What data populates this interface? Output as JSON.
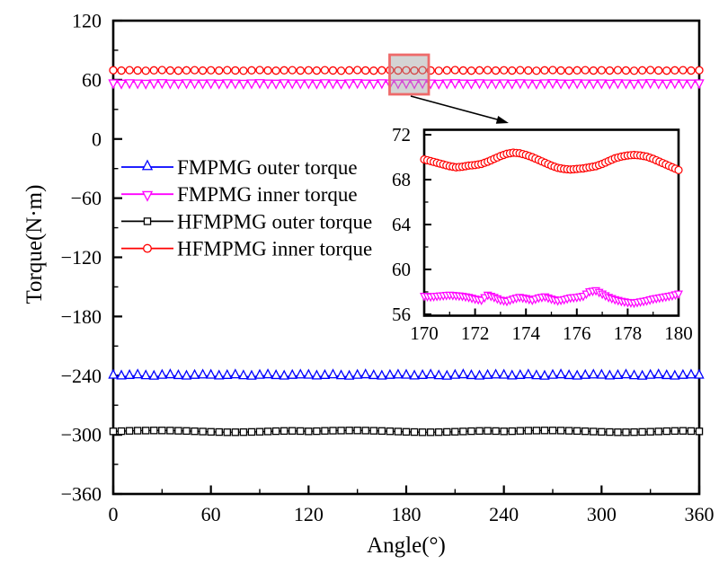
{
  "figure": {
    "background": "#ffffff",
    "frame_color": "#000000"
  },
  "chart_data": {
    "type": "line",
    "title": "",
    "xlabel": "Angle(°)",
    "ylabel": "Torque(N·m)",
    "x_range": [
      0,
      360
    ],
    "y_range": [
      -360,
      120
    ],
    "x_ticks": [
      0,
      60,
      120,
      180,
      240,
      300,
      360
    ],
    "x_minor_ticks": [
      30,
      90,
      150,
      210,
      270,
      330
    ],
    "y_ticks": [
      120,
      60,
      0,
      -60,
      -120,
      -180,
      -240,
      -300,
      -360
    ],
    "y_minor_ticks": [
      90,
      30,
      -30,
      -90,
      -150,
      -210,
      -270,
      -330
    ],
    "grid": false,
    "legend_position": "upper-left-inside",
    "x": [
      0,
      5,
      10,
      15,
      20,
      25,
      30,
      35,
      40,
      45,
      50,
      55,
      60,
      65,
      70,
      75,
      80,
      85,
      90,
      95,
      100,
      105,
      110,
      115,
      120,
      125,
      130,
      135,
      140,
      145,
      150,
      155,
      160,
      165,
      170,
      175,
      180,
      185,
      190,
      195,
      200,
      205,
      210,
      215,
      220,
      225,
      230,
      235,
      240,
      245,
      250,
      255,
      260,
      265,
      270,
      275,
      280,
      285,
      290,
      295,
      300,
      305,
      310,
      315,
      320,
      325,
      330,
      335,
      340,
      345,
      350,
      355,
      360
    ],
    "series": [
      {
        "name": "FMPMG outer torque",
        "color": "#0000ff",
        "marker": "triangle-up",
        "mean": -240.5,
        "values": [
          -240.2,
          -241.0,
          -240.5,
          -239.9,
          -240.8,
          -241.2,
          -240.3,
          -239.8,
          -240.6,
          -241.1,
          -240.4,
          -240.0,
          -240.2,
          -241.0,
          -240.5,
          -239.9,
          -240.8,
          -241.2,
          -240.3,
          -239.8,
          -240.6,
          -241.1,
          -240.4,
          -240.0,
          -240.2,
          -241.0,
          -240.5,
          -239.9,
          -240.8,
          -241.2,
          -240.3,
          -239.8,
          -240.6,
          -241.1,
          -240.4,
          -240.0,
          -240.2,
          -241.0,
          -240.5,
          -239.9,
          -240.8,
          -241.2,
          -240.3,
          -239.8,
          -240.6,
          -241.1,
          -240.4,
          -240.0,
          -240.2,
          -241.0,
          -240.5,
          -239.9,
          -240.8,
          -241.2,
          -240.3,
          -239.8,
          -240.6,
          -241.1,
          -240.4,
          -240.0,
          -240.2,
          -241.0,
          -240.5,
          -239.9,
          -240.8,
          -241.2,
          -240.3,
          -239.8,
          -240.6,
          -241.1,
          -240.4,
          -240.0,
          -240.2
        ]
      },
      {
        "name": "FMPMG inner torque",
        "color": "#ff00ff",
        "marker": "triangle-down",
        "mean": 57.5,
        "values": [
          57.6,
          57.3,
          57.7,
          57.5,
          57.2,
          57.6,
          57.8,
          57.4,
          57.3,
          57.7,
          57.5,
          57.4,
          57.6,
          57.3,
          57.7,
          57.5,
          57.2,
          57.6,
          57.8,
          57.4,
          57.3,
          57.7,
          57.5,
          57.4,
          57.6,
          57.3,
          57.7,
          57.5,
          57.2,
          57.6,
          57.8,
          57.4,
          57.3,
          57.7,
          57.5,
          57.4,
          57.6,
          57.3,
          57.7,
          57.5,
          57.2,
          57.6,
          57.8,
          57.4,
          57.3,
          57.7,
          57.5,
          57.4,
          57.6,
          57.3,
          57.7,
          57.5,
          57.2,
          57.6,
          57.8,
          57.4,
          57.3,
          57.7,
          57.5,
          57.4,
          57.6,
          57.3,
          57.7,
          57.5,
          57.2,
          57.6,
          57.8,
          57.4,
          57.3,
          57.7,
          57.5,
          57.4,
          57.6
        ]
      },
      {
        "name": "HFMPMG outer torque",
        "color": "#000000",
        "marker": "square",
        "mean": -296.5,
        "values": [
          -296.5,
          -296.3,
          -296.0,
          -295.8,
          -295.7,
          -295.6,
          -295.6,
          -295.7,
          -295.9,
          -296.1,
          -296.4,
          -296.7,
          -297.0,
          -297.2,
          -297.4,
          -297.4,
          -297.3,
          -297.1,
          -296.9,
          -296.6,
          -296.3,
          -296.1,
          -296.0,
          -296.2,
          -296.5,
          -296.3,
          -296.0,
          -295.8,
          -295.7,
          -295.6,
          -295.6,
          -295.7,
          -295.9,
          -296.1,
          -296.4,
          -296.7,
          -297.0,
          -297.2,
          -297.4,
          -297.4,
          -297.3,
          -297.1,
          -296.9,
          -296.6,
          -296.3,
          -296.1,
          -296.0,
          -296.2,
          -296.5,
          -296.3,
          -296.0,
          -295.8,
          -295.7,
          -295.6,
          -295.6,
          -295.7,
          -295.9,
          -296.1,
          -296.4,
          -296.7,
          -297.0,
          -297.2,
          -297.4,
          -297.4,
          -297.3,
          -297.1,
          -296.9,
          -296.6,
          -296.3,
          -296.1,
          -296.0,
          -296.2,
          -296.5
        ]
      },
      {
        "name": "HFMPMG inner torque",
        "color": "#ff0000",
        "marker": "circle",
        "mean": 69.5,
        "values": [
          69.7,
          69.4,
          69.8,
          69.5,
          69.2,
          69.6,
          69.9,
          69.5,
          69.3,
          69.6,
          69.8,
          69.4,
          69.7,
          69.4,
          69.8,
          69.5,
          69.2,
          69.6,
          69.9,
          69.5,
          69.3,
          69.6,
          69.8,
          69.4,
          69.7,
          69.4,
          69.8,
          69.5,
          69.2,
          69.6,
          69.9,
          69.5,
          69.3,
          69.6,
          69.8,
          69.4,
          69.7,
          69.4,
          69.8,
          69.5,
          69.2,
          69.6,
          69.9,
          69.5,
          69.3,
          69.6,
          69.8,
          69.4,
          69.7,
          69.4,
          69.8,
          69.5,
          69.2,
          69.6,
          69.9,
          69.5,
          69.3,
          69.6,
          69.8,
          69.4,
          69.7,
          69.4,
          69.8,
          69.5,
          69.2,
          69.6,
          69.9,
          69.5,
          69.3,
          69.6,
          69.8,
          69.4,
          69.7
        ]
      }
    ],
    "zoom_callout": {
      "description": "Shaded region of the two inner-torque curves near 175° magnified in inset",
      "highlight_border_color": "#ee6a6a",
      "highlight_fill_color": "rgba(160,160,160,0.45)",
      "arrow_color": "#000000"
    },
    "inset": {
      "x_range": [
        170,
        180
      ],
      "y_range": [
        56,
        72
      ],
      "x_ticks": [
        170,
        172,
        174,
        176,
        178,
        180
      ],
      "x_minor_ticks": [
        171,
        173,
        175,
        177,
        179
      ],
      "y_ticks": [
        72,
        68,
        64,
        60,
        56
      ],
      "y_minor_ticks": [
        70,
        66,
        62,
        58
      ],
      "x": [
        170,
        170.25,
        170.5,
        170.75,
        171,
        171.25,
        171.5,
        171.75,
        172,
        172.25,
        172.5,
        172.75,
        173,
        173.25,
        173.5,
        173.75,
        174,
        174.25,
        174.5,
        174.75,
        175,
        175.25,
        175.5,
        175.75,
        176,
        176.25,
        176.5,
        176.75,
        177,
        177.25,
        177.5,
        177.75,
        178,
        178.25,
        178.5,
        178.75,
        179,
        179.25,
        179.5,
        179.75,
        180
      ],
      "series": [
        {
          "name": "HFMPMG inner torque",
          "color": "#ff0000",
          "marker": "circle",
          "values": [
            69.8,
            69.65,
            69.5,
            69.35,
            69.2,
            69.1,
            69.15,
            69.25,
            69.3,
            69.4,
            69.6,
            69.85,
            70.1,
            70.3,
            70.4,
            70.35,
            70.2,
            70.0,
            69.75,
            69.5,
            69.25,
            69.05,
            68.95,
            68.9,
            68.95,
            69.0,
            69.1,
            69.2,
            69.4,
            69.65,
            69.9,
            70.05,
            70.15,
            70.2,
            70.15,
            70.05,
            69.85,
            69.6,
            69.35,
            69.1,
            68.85
          ]
        },
        {
          "name": "FMPMG inner torque",
          "color": "#ff00ff",
          "marker": "triangle-down",
          "values": [
            57.7,
            57.65,
            57.7,
            57.75,
            57.8,
            57.75,
            57.7,
            57.6,
            57.45,
            57.35,
            57.8,
            57.6,
            57.35,
            57.25,
            57.45,
            57.6,
            57.5,
            57.35,
            57.55,
            57.65,
            57.45,
            57.3,
            57.4,
            57.55,
            57.6,
            57.7,
            58.1,
            58.2,
            57.9,
            57.6,
            57.4,
            57.25,
            57.15,
            57.1,
            57.2,
            57.3,
            57.45,
            57.55,
            57.65,
            57.75,
            57.9
          ]
        }
      ]
    }
  }
}
